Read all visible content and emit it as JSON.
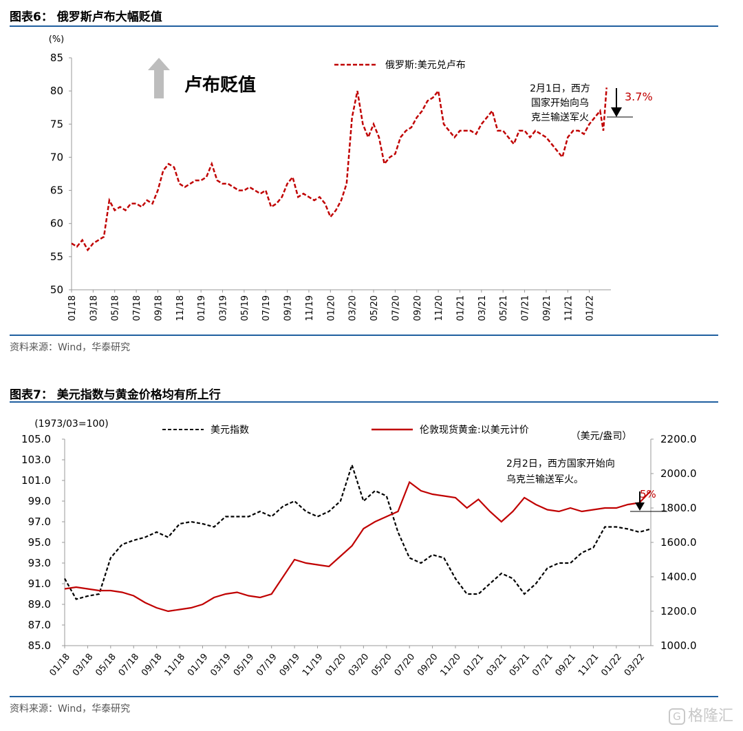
{
  "figure6": {
    "title": "图表6： 俄罗斯卢布大幅贬值",
    "source": "资料来源：Wind，华泰研究"
  },
  "figure7": {
    "title": "图表7： 美元指数与黄金价格均有所上行",
    "source": "资料来源：Wind，华泰研究"
  },
  "watermark": "格隆汇",
  "colors": {
    "red": "#c00000",
    "black": "#000000",
    "rule": "#1f5f9f",
    "arrow_gray": "#bdbdbd"
  },
  "chart_data": [
    {
      "type": "line",
      "title": "",
      "yunit": "(%)",
      "ylim": [
        50,
        85
      ],
      "yticks": [
        50,
        55,
        60,
        65,
        70,
        75,
        80,
        85
      ],
      "xticks": [
        "01/18",
        "03/18",
        "05/18",
        "07/18",
        "09/18",
        "11/18",
        "01/19",
        "03/19",
        "05/19",
        "07/19",
        "09/19",
        "11/19",
        "01/20",
        "03/20",
        "05/20",
        "07/20",
        "09/20",
        "11/20",
        "01/21",
        "03/21",
        "05/21",
        "07/21",
        "09/21",
        "11/21",
        "01/22"
      ],
      "big_annotation": "卢布贬值",
      "event_annotation": "2月1日，西方国家开始向乌克兰输送军火",
      "change_label": "3.7%",
      "series": [
        {
          "name": "俄罗斯:美元兑卢布",
          "color": "#c00000",
          "style": "dashed",
          "x": [
            0,
            0.5,
            1,
            1.5,
            2,
            2.5,
            3,
            3.5,
            4,
            4.5,
            5,
            5.5,
            6,
            6.5,
            7,
            7.5,
            8,
            8.5,
            9,
            9.5,
            10,
            10.5,
            11,
            11.5,
            12,
            12.5,
            13,
            13.5,
            14,
            14.5,
            15,
            15.5,
            16,
            16.5,
            17,
            17.5,
            18,
            18.5,
            19,
            19.5,
            20,
            20.5,
            21,
            21.5,
            22,
            22.5,
            23,
            23.5,
            24,
            24.5,
            25,
            25.5,
            26,
            26.5,
            27,
            27.5,
            28,
            28.5,
            29,
            29.5,
            30,
            30.5,
            31,
            31.5,
            32,
            32.5,
            33,
            33.5,
            34,
            34.5,
            35,
            35.5,
            36,
            36.5,
            37,
            37.5,
            38,
            38.5,
            39,
            39.5,
            40,
            40.5,
            41,
            41.5,
            42,
            42.5,
            43,
            43.5,
            44,
            44.5,
            45,
            45.5,
            46,
            46.5,
            47,
            47.5,
            48,
            48.5,
            49,
            49.3,
            49.6
          ],
          "values": [
            57,
            56.5,
            57.5,
            56,
            57,
            57.5,
            58,
            63.5,
            62,
            62.5,
            62,
            63,
            63,
            62.5,
            63.5,
            63,
            65,
            68,
            69,
            68.5,
            66,
            65.5,
            66,
            66.5,
            66.5,
            67,
            69,
            66.5,
            66,
            66,
            65.5,
            65,
            65,
            65.5,
            65,
            64.5,
            65,
            62.5,
            63,
            64,
            66,
            67,
            64,
            64.5,
            64,
            63.5,
            64,
            63,
            61,
            62,
            63.5,
            66,
            76,
            80,
            75,
            73,
            75,
            73,
            69,
            70,
            70.5,
            73,
            74,
            74.5,
            76,
            77,
            78.5,
            79,
            80,
            75,
            74,
            73,
            74,
            74,
            74,
            73.5,
            75,
            76,
            77,
            74,
            74,
            73,
            72,
            74,
            74,
            73,
            74,
            73.5,
            73,
            72,
            71,
            70,
            73,
            74,
            74,
            73.5,
            75,
            76,
            77,
            74,
            80.5
          ]
        }
      ]
    },
    {
      "type": "line",
      "title": "",
      "yunit_left": "(1973/03=100)",
      "yunit_right": "（美元/盎司）",
      "ylim_left": [
        85,
        105
      ],
      "ylim_right": [
        1000,
        2200
      ],
      "yticks_left": [
        "85.0",
        "87.0",
        "89.0",
        "91.0",
        "93.0",
        "95.0",
        "97.0",
        "99.0",
        "101.0",
        "103.0",
        "105.0"
      ],
      "yticks_right": [
        "1000.0",
        "1200.0",
        "1400.0",
        "1600.0",
        "1800.0",
        "2000.0",
        "2200.0"
      ],
      "xticks": [
        "01/18",
        "03/18",
        "05/18",
        "07/18",
        "09/18",
        "11/18",
        "01/19",
        "03/19",
        "05/19",
        "07/19",
        "09/19",
        "11/19",
        "01/20",
        "03/20",
        "05/20",
        "07/20",
        "09/20",
        "11/20",
        "01/21",
        "03/21",
        "05/21",
        "07/21",
        "09/21",
        "11/21",
        "01/22",
        "03/22"
      ],
      "event_annotation": "2月2日，西方国家开始向乌克兰输送军火。",
      "change_label": "5%",
      "series": [
        {
          "name": "美元指数",
          "axis": "left",
          "color": "#000000",
          "style": "dashed",
          "x": [
            0,
            1,
            2,
            3,
            4,
            5,
            6,
            7,
            8,
            9,
            10,
            11,
            12,
            13,
            14,
            15,
            16,
            17,
            18,
            19,
            20,
            21,
            22,
            23,
            24,
            25,
            26,
            27,
            28,
            29,
            30,
            31,
            32,
            33,
            34,
            35,
            36,
            37,
            38,
            39,
            40,
            41,
            42,
            43,
            44,
            45,
            46,
            47,
            48,
            49,
            50,
            51
          ],
          "values": [
            91.5,
            89.5,
            89.8,
            90,
            93.5,
            94.8,
            95.2,
            95.5,
            96,
            95.5,
            96.8,
            97,
            96.8,
            96.5,
            97.5,
            97.5,
            97.5,
            98,
            97.5,
            98.5,
            99,
            98,
            97.5,
            98,
            99,
            102.5,
            99,
            100,
            99.5,
            96,
            93.5,
            93,
            93.8,
            93.5,
            91.5,
            90,
            90,
            91,
            92,
            91.5,
            90,
            91,
            92.5,
            93,
            93,
            94,
            94.5,
            96.5,
            96.5,
            96.3,
            96.0,
            96.3
          ]
        },
        {
          "name": "伦敦现货黄金:以美元计价",
          "axis": "right",
          "color": "#c00000",
          "style": "solid",
          "x": [
            0,
            1,
            2,
            3,
            4,
            5,
            6,
            7,
            8,
            9,
            10,
            11,
            12,
            13,
            14,
            15,
            16,
            17,
            18,
            19,
            20,
            21,
            22,
            23,
            24,
            25,
            26,
            27,
            28,
            29,
            30,
            31,
            32,
            33,
            34,
            35,
            36,
            37,
            38,
            39,
            40,
            41,
            42,
            43,
            44,
            45,
            46,
            47,
            48,
            49,
            50,
            51
          ],
          "values": [
            1330,
            1340,
            1330,
            1320,
            1320,
            1310,
            1290,
            1250,
            1220,
            1200,
            1210,
            1220,
            1240,
            1280,
            1300,
            1310,
            1290,
            1280,
            1300,
            1400,
            1500,
            1480,
            1470,
            1460,
            1520,
            1580,
            1680,
            1720,
            1750,
            1780,
            1950,
            1900,
            1880,
            1870,
            1860,
            1800,
            1850,
            1780,
            1720,
            1780,
            1860,
            1820,
            1790,
            1780,
            1800,
            1780,
            1790,
            1800,
            1800,
            1820,
            1830,
            1900
          ]
        }
      ]
    }
  ]
}
